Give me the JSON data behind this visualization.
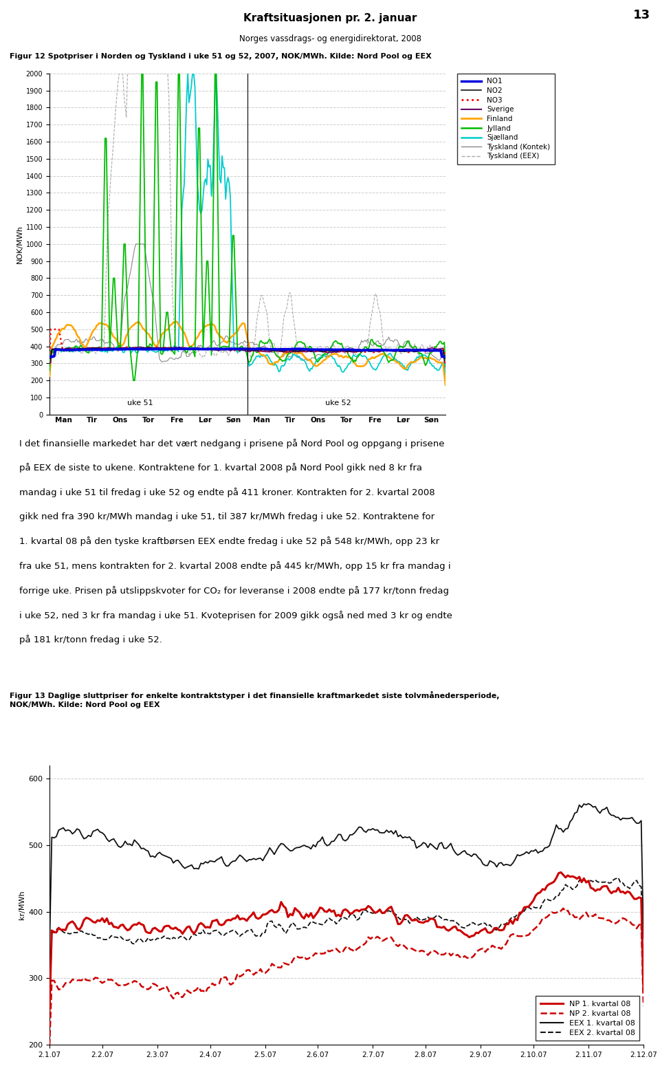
{
  "page_title": "Kraftsituasjonen pr. 2. januar",
  "page_subtitle": "Norges vassdrags- og energidirektorat, 2008",
  "page_number": "13",
  "fig12_title": "Figur 12 Spotpriser i Norden og Tyskland i uke 51 og 52, 2007, NOK/MWh. Kilde: Nord Pool og EEX",
  "fig12_ylabel": "NOK/MWh",
  "fig12_ylim": [
    0,
    2000
  ],
  "fig12_yticks": [
    0,
    100,
    200,
    300,
    400,
    500,
    600,
    700,
    800,
    900,
    1000,
    1100,
    1200,
    1300,
    1400,
    1500,
    1600,
    1700,
    1800,
    1900,
    2000
  ],
  "fig12_xticks_labels": [
    "Man",
    "Tir",
    "Ons",
    "Tor",
    "Fre",
    "Lør",
    "Søn",
    "Man",
    "Tir",
    "Ons",
    "Tor",
    "Fre",
    "Lør",
    "Søn"
  ],
  "week51_label": "uke 51",
  "week52_label": "uke 52",
  "legend_entries": [
    {
      "label": "NO1",
      "color": "#0000DD",
      "linestyle": "solid",
      "linewidth": 2.5
    },
    {
      "label": "NO2",
      "color": "#111111",
      "linestyle": "solid",
      "linewidth": 1.2
    },
    {
      "label": "NO3",
      "color": "#FF0000",
      "linestyle": "dotted",
      "linewidth": 2
    },
    {
      "label": "Sverige",
      "color": "#660066",
      "linestyle": "solid",
      "linewidth": 1.5
    },
    {
      "label": "Finland",
      "color": "#FFA500",
      "linestyle": "solid",
      "linewidth": 2
    },
    {
      "label": "Jylland",
      "color": "#00BB00",
      "linestyle": "solid",
      "linewidth": 1.8
    },
    {
      "label": "Sjælland",
      "color": "#00CCCC",
      "linestyle": "solid",
      "linewidth": 1.8
    },
    {
      "label": "Tyskland (Kontek)",
      "color": "#888888",
      "linestyle": "solid",
      "linewidth": 1
    },
    {
      "label": "Tyskland (EEX)",
      "color": "#AAAAAA",
      "linestyle": "dashed",
      "linewidth": 1
    }
  ],
  "fig13_title": "Figur 13 Daglige sluttpriser for enkelte kontraktstyper i det finansielle kraftmarkedet siste tolvmånedersperiode,\nNOK/MWh. Kilde: Nord Pool og EEX",
  "fig13_ylabel": "kr/MWh",
  "fig13_ylim": [
    200,
    620
  ],
  "fig13_yticks": [
    200,
    300,
    400,
    500,
    600
  ],
  "fig13_xlabel_dates": [
    "2.1.07",
    "2.2.07",
    "2.3.07",
    "2.4.07",
    "2.5.07",
    "2.6.07",
    "2.7.07",
    "2.8.07",
    "2.9.07",
    "2.10.07",
    "2.11.07",
    "2.12.07"
  ],
  "fig13_legend": [
    {
      "label": "NP 1. kvartal 08",
      "color": "#CC0000",
      "linestyle": "solid",
      "linewidth": 2.2
    },
    {
      "label": "NP 2. kvartal 08",
      "color": "#CC0000",
      "linestyle": "dashed",
      "linewidth": 1.8
    },
    {
      "label": "EEX 1. kvartal 08",
      "color": "#111111",
      "linestyle": "solid",
      "linewidth": 1.5
    },
    {
      "label": "EEX 2. kvartal 08",
      "color": "#111111",
      "linestyle": "dashed",
      "linewidth": 1.5
    }
  ],
  "body_text_lines": [
    "I det finansielle markedet har det vært nedgang i prisene på Nord Pool og oppgang i prisene",
    "på EEX de siste to ukene. Kontraktene for 1. kvartal 2008 på Nord Pool gikk ned 8 kr fra",
    "mandag i uke 51 til fredag i uke 52 og endte på 411 kroner. Kontrakten for 2. kvartal 2008",
    "gikk ned fra 390 kr/MWh mandag i uke 51, til 387 kr/MWh fredag i uke 52. Kontraktene for",
    "1. kvartal 08 på den tyske kraftbørsen EEX endte fredag i uke 52 på 548 kr/MWh, opp 23 kr",
    "fra uke 51, mens kontrakten for 2. kvartal 2008 endte på 445 kr/MWh, opp 15 kr fra mandag i",
    "forrige uke. Prisen på utslippskvoter for CO₂ for leveranse i 2008 endte på 177 kr/tonn fredag",
    "i uke 52, ned 3 kr fra mandag i uke 51. Kvoteprisen for 2009 gikk også ned med 3 kr og endte",
    "på 181 kr/tonn fredag i uke 52."
  ]
}
